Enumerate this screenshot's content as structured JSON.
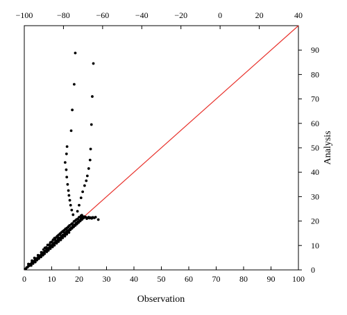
{
  "chart_data": {
    "type": "scatter",
    "xlabel": "Observation",
    "ylabel": "Analysis",
    "xlim": [
      0,
      100
    ],
    "ylim": [
      0,
      100
    ],
    "bottom_ticks": [
      "0",
      "10",
      "20",
      "30",
      "40",
      "50",
      "60",
      "70",
      "80",
      "90",
      "100"
    ],
    "top_axis": {
      "range": [
        -100,
        40
      ],
      "ticks": [
        "−100",
        "−80",
        "−60",
        "−40",
        "−20",
        "0",
        "20",
        "40"
      ]
    },
    "right_ticks": [
      "0",
      "10",
      "20",
      "30",
      "40",
      "50",
      "60",
      "70",
      "80",
      "90"
    ],
    "reference_line": {
      "x": [
        0,
        100
      ],
      "y": [
        0,
        100
      ],
      "color": "#e8312b"
    },
    "marker_color": "#000000",
    "series": [
      {
        "values": [
          [
            0.3,
            0.4
          ],
          [
            0.6,
            0.5
          ],
          [
            0.9,
            1.0
          ],
          [
            1.2,
            1.1
          ],
          [
            1.5,
            1.6
          ],
          [
            1.8,
            1.7
          ],
          [
            2.1,
            2.3
          ],
          [
            2.4,
            2.2
          ],
          [
            2.7,
            2.9
          ],
          [
            3.0,
            2.8
          ],
          [
            3.3,
            3.5
          ],
          [
            3.6,
            3.4
          ],
          [
            3.9,
            4.1
          ],
          [
            4.2,
            4.0
          ],
          [
            4.5,
            4.7
          ],
          [
            4.8,
            4.5
          ],
          [
            5.1,
            5.3
          ],
          [
            5.4,
            5.1
          ],
          [
            5.7,
            5.9
          ],
          [
            6.0,
            5.8
          ],
          [
            6.3,
            6.5
          ],
          [
            6.6,
            6.3
          ],
          [
            6.9,
            7.1
          ],
          [
            7.2,
            6.9
          ],
          [
            7.5,
            7.7
          ],
          [
            7.8,
            7.6
          ],
          [
            8.1,
            8.3
          ],
          [
            8.4,
            8.1
          ],
          [
            8.7,
            8.9
          ],
          [
            9.0,
            8.8
          ],
          [
            9.3,
            9.5
          ],
          [
            9.6,
            9.3
          ],
          [
            9.9,
            10.1
          ],
          [
            10.2,
            9.9
          ],
          [
            10.5,
            10.7
          ],
          [
            10.8,
            10.5
          ],
          [
            11.1,
            11.3
          ],
          [
            11.4,
            11.1
          ],
          [
            11.7,
            11.9
          ],
          [
            12.0,
            11.7
          ],
          [
            12.3,
            12.5
          ],
          [
            12.6,
            12.2
          ],
          [
            12.9,
            13.1
          ],
          [
            13.2,
            12.9
          ],
          [
            13.5,
            13.7
          ],
          [
            13.8,
            13.5
          ],
          [
            14.1,
            14.3
          ],
          [
            14.4,
            14.1
          ],
          [
            14.7,
            14.9
          ],
          [
            15.0,
            14.6
          ],
          [
            15.3,
            15.5
          ],
          [
            15.6,
            15.3
          ],
          [
            15.9,
            16.1
          ],
          [
            16.2,
            15.9
          ],
          [
            16.5,
            16.7
          ],
          [
            16.8,
            16.4
          ],
          [
            17.1,
            17.3
          ],
          [
            17.4,
            17.0
          ],
          [
            17.7,
            17.9
          ],
          [
            18.0,
            17.6
          ],
          [
            18.3,
            18.5
          ],
          [
            18.6,
            18.2
          ],
          [
            18.9,
            19.1
          ],
          [
            19.2,
            18.8
          ],
          [
            19.5,
            19.7
          ],
          [
            19.8,
            19.4
          ],
          [
            20.1,
            20.3
          ],
          [
            20.4,
            20.0
          ],
          [
            20.7,
            20.9
          ],
          [
            21.0,
            20.6
          ],
          [
            21.3,
            21.5
          ],
          [
            21.6,
            21.2
          ],
          [
            21.9,
            21.8
          ],
          [
            22.2,
            21.7
          ],
          [
            2.5,
            1.8
          ],
          [
            3.2,
            2.6
          ],
          [
            4.0,
            3.2
          ],
          [
            4.6,
            4.0
          ],
          [
            5.3,
            4.6
          ],
          [
            6.1,
            5.3
          ],
          [
            6.8,
            6.0
          ],
          [
            7.4,
            6.6
          ],
          [
            8.2,
            7.4
          ],
          [
            8.8,
            8.0
          ],
          [
            9.5,
            8.7
          ],
          [
            10.3,
            9.4
          ],
          [
            11.0,
            10.1
          ],
          [
            11.8,
            10.9
          ],
          [
            12.5,
            11.6
          ],
          [
            13.3,
            12.3
          ],
          [
            14.0,
            13.1
          ],
          [
            14.8,
            13.8
          ],
          [
            15.5,
            14.6
          ],
          [
            16.3,
            15.3
          ],
          [
            1.5,
            2.4
          ],
          [
            2.8,
            3.8
          ],
          [
            3.7,
            4.9
          ],
          [
            5.0,
            6.0
          ],
          [
            6.2,
            7.2
          ],
          [
            7.0,
            8.3
          ],
          [
            8.0,
            9.2
          ],
          [
            9.1,
            10.3
          ],
          [
            10.1,
            11.4
          ],
          [
            11.2,
            12.4
          ],
          [
            12.2,
            13.4
          ],
          [
            13.1,
            14.5
          ],
          [
            14.3,
            15.6
          ],
          [
            15.2,
            16.6
          ],
          [
            16.1,
            17.7
          ],
          [
            17.2,
            18.7
          ],
          [
            18.1,
            19.8
          ],
          [
            19.0,
            20.6
          ],
          [
            20.0,
            21.6
          ],
          [
            21.0,
            22.4
          ],
          [
            7.5,
            9.0
          ],
          [
            8.5,
            10.2
          ],
          [
            9.5,
            11.2
          ],
          [
            10.5,
            12.3
          ],
          [
            11.5,
            13.2
          ],
          [
            12.5,
            14.3
          ],
          [
            13.5,
            15.3
          ],
          [
            14.5,
            16.2
          ],
          [
            15.5,
            17.1
          ],
          [
            16.5,
            18.2
          ],
          [
            17.5,
            19.0
          ],
          [
            18.5,
            20.1
          ],
          [
            19.5,
            20.9
          ],
          [
            10.0,
            11.5
          ],
          [
            11.0,
            13.0
          ],
          [
            12.0,
            13.8
          ],
          [
            13.0,
            14.8
          ],
          [
            14.0,
            15.8
          ],
          [
            15.0,
            16.8
          ],
          [
            16.0,
            17.6
          ],
          [
            22.5,
            21.5
          ],
          [
            22.8,
            21.0
          ],
          [
            23.2,
            21.3
          ],
          [
            23.5,
            21.6
          ],
          [
            23.8,
            21.2
          ],
          [
            24.2,
            21.4
          ],
          [
            24.6,
            21.1
          ],
          [
            25.0,
            21.5
          ],
          [
            25.5,
            21.3
          ],
          [
            26.0,
            21.6
          ],
          [
            27.0,
            20.6
          ],
          [
            20.5,
            21.6
          ],
          [
            21.4,
            21.8
          ],
          [
            20.7,
            22.2
          ],
          [
            17.8,
            22.6
          ],
          [
            17.3,
            24.5
          ],
          [
            16.9,
            26.5
          ],
          [
            16.6,
            28.5
          ],
          [
            16.3,
            30.5
          ],
          [
            16.1,
            32.5
          ],
          [
            15.8,
            35.0
          ],
          [
            15.5,
            38.0
          ],
          [
            15.3,
            41.0
          ],
          [
            14.9,
            44.0
          ],
          [
            15.4,
            47.5
          ],
          [
            15.6,
            50.5
          ],
          [
            17.1,
            57.0
          ],
          [
            17.5,
            65.5
          ],
          [
            18.2,
            76.0
          ],
          [
            18.6,
            88.8
          ],
          [
            19.4,
            24.0
          ],
          [
            20.0,
            26.5
          ],
          [
            20.7,
            29.5
          ],
          [
            21.3,
            32.0
          ],
          [
            22.0,
            34.5
          ],
          [
            22.6,
            36.5
          ],
          [
            23.0,
            38.5
          ],
          [
            23.5,
            41.5
          ],
          [
            24.0,
            45.0
          ],
          [
            24.2,
            49.5
          ],
          [
            24.5,
            59.5
          ],
          [
            24.8,
            71.0
          ],
          [
            25.2,
            84.5
          ]
        ]
      }
    ]
  }
}
